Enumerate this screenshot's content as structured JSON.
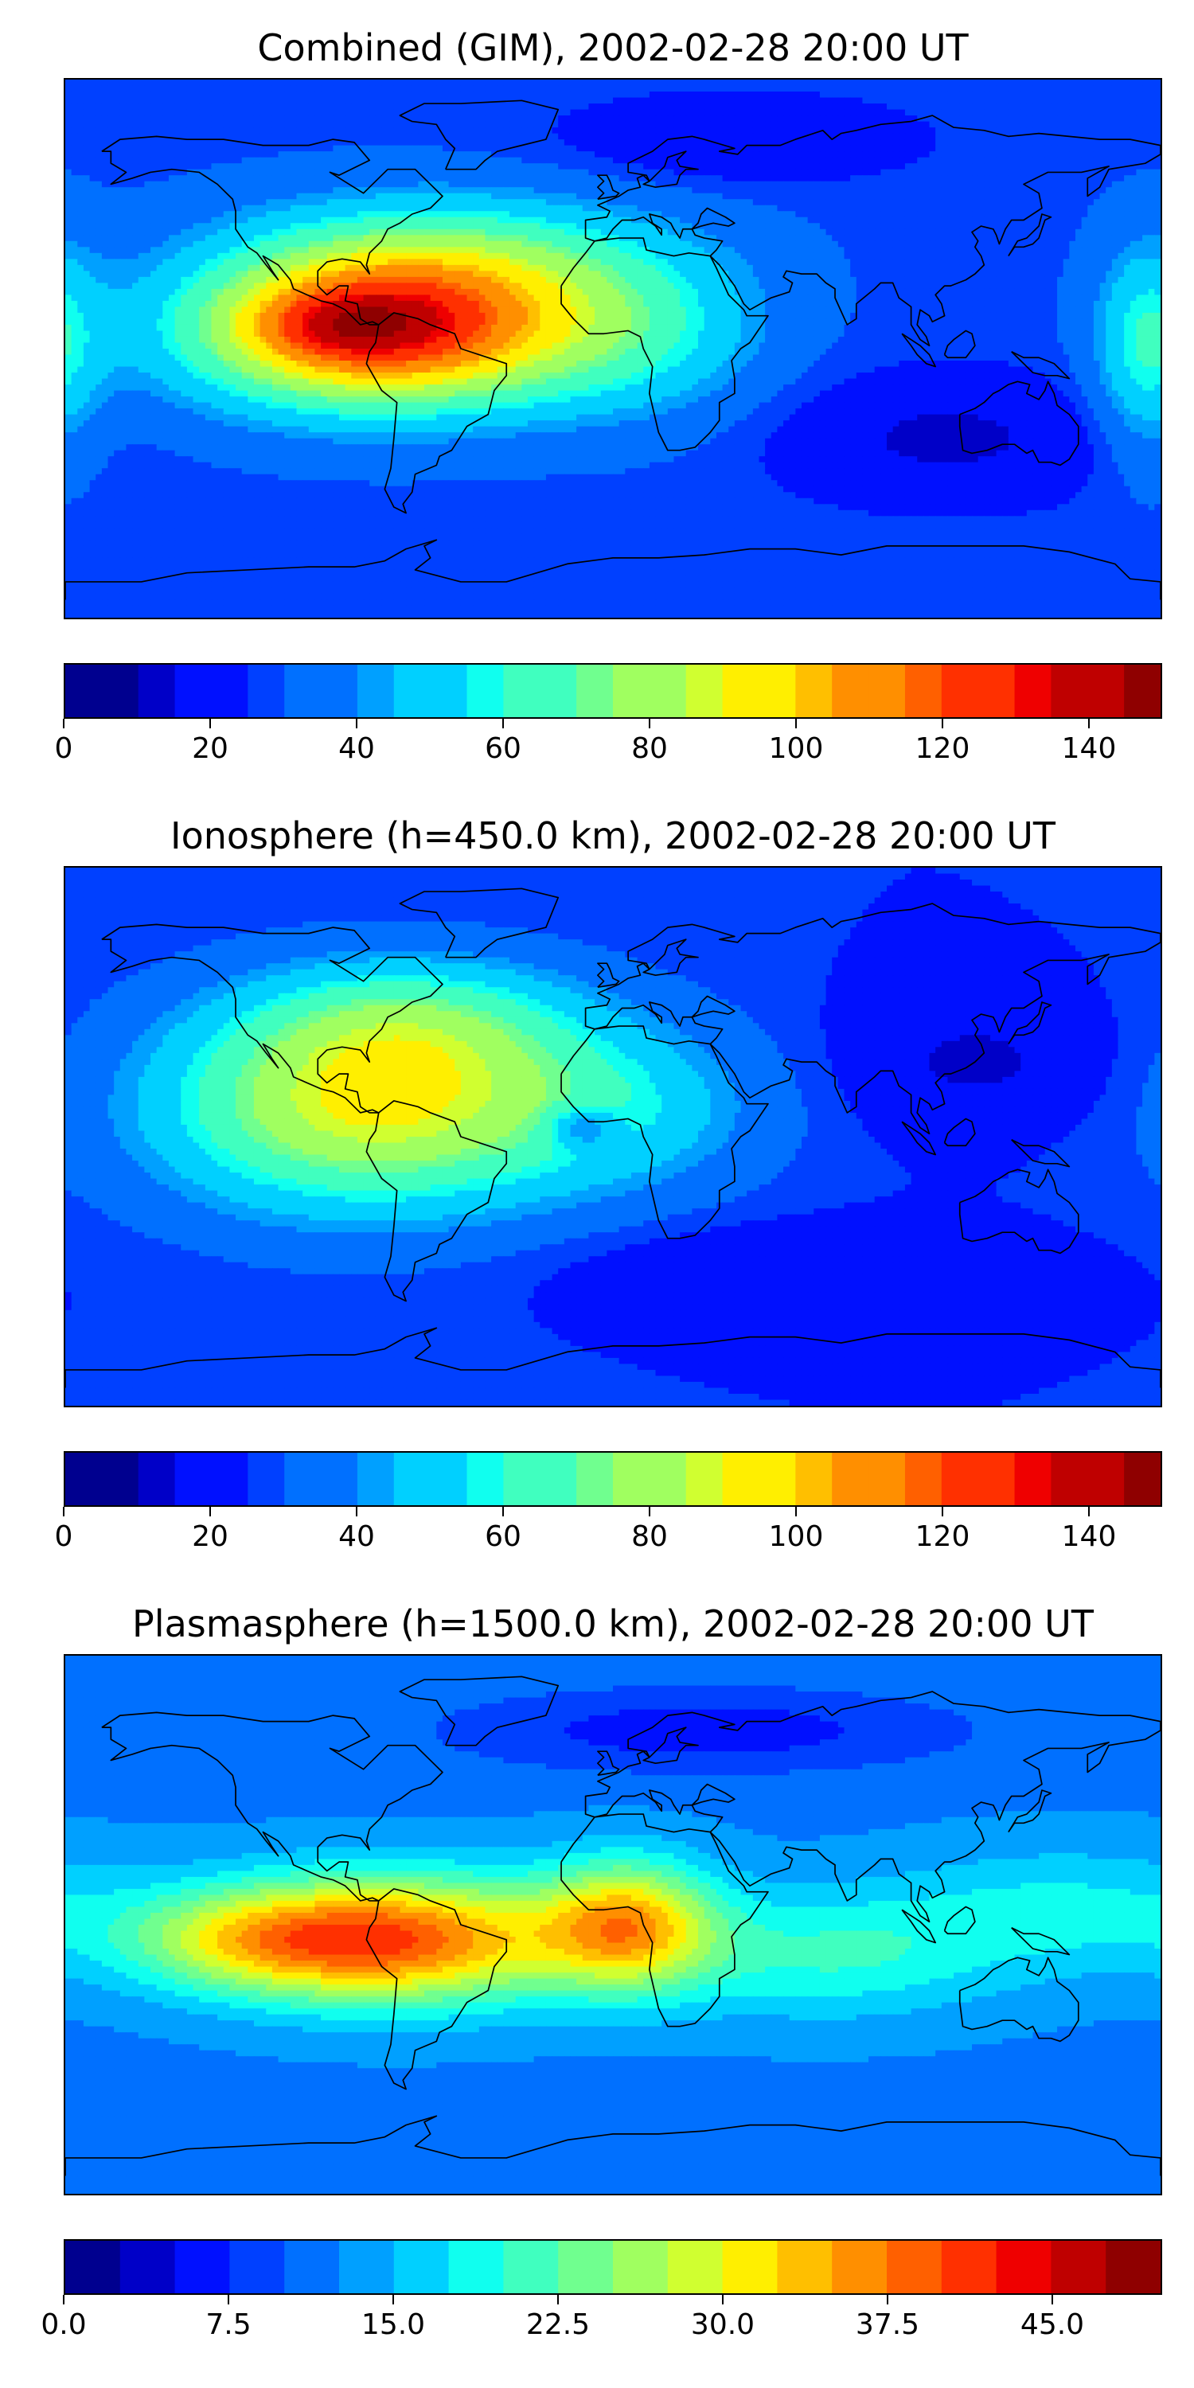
{
  "palette": [
    "#00008f",
    "#0000c8",
    "#0010ff",
    "#0040ff",
    "#0070ff",
    "#00a0ff",
    "#00d0ff",
    "#10ffef",
    "#40ffbf",
    "#70ff8f",
    "#a0ff60",
    "#d0ff30",
    "#ffef00",
    "#ffbf00",
    "#ff8f00",
    "#ff6000",
    "#ff3000",
    "#ef0000",
    "#bf0000",
    "#8f0000"
  ],
  "coastline_color": "#000000",
  "panels": [
    {
      "title": "Combined (GIM), 2002-02-28 20:00 UT",
      "colorbar": {
        "min": 0,
        "max": 150,
        "levels": 30,
        "ticks": [
          "0",
          "20",
          "40",
          "60",
          "80",
          "100",
          "120",
          "140"
        ],
        "tick_values": [
          0,
          20,
          40,
          60,
          80,
          100,
          120,
          140
        ]
      },
      "field": {
        "base": 28,
        "blobs": [
          {
            "lon": -75,
            "lat": 5,
            "amp": 95,
            "slon": 45,
            "slat": 18
          },
          {
            "lon": -90,
            "lat": 8,
            "amp": 20,
            "slon": 20,
            "slat": 8
          },
          {
            "lon": -55,
            "lat": 30,
            "amp": 35,
            "slon": 50,
            "slat": 16
          },
          {
            "lon": 10,
            "lat": 5,
            "amp": 22,
            "slon": 30,
            "slat": 20
          },
          {
            "lon": 175,
            "lat": 0,
            "amp": 30,
            "slon": 12,
            "slat": 25
          },
          {
            "lon": 110,
            "lat": -30,
            "amp": -15,
            "slon": 40,
            "slat": 15
          },
          {
            "lon": 40,
            "lat": 70,
            "amp": -12,
            "slon": 40,
            "slat": 10
          }
        ]
      }
    },
    {
      "title": "Ionosphere  (h=450.0 km), 2002-02-28 20:00 UT",
      "colorbar": {
        "min": 0,
        "max": 150,
        "levels": 30,
        "ticks": [
          "0",
          "20",
          "40",
          "60",
          "80",
          "100",
          "120",
          "140"
        ],
        "tick_values": [
          0,
          20,
          40,
          60,
          80,
          100,
          120,
          140
        ]
      },
      "field": {
        "base": 25,
        "blobs": [
          {
            "lon": -80,
            "lat": 10,
            "amp": 65,
            "slon": 50,
            "slat": 25
          },
          {
            "lon": -65,
            "lat": 40,
            "amp": 25,
            "slon": 40,
            "slat": 15
          },
          {
            "lon": 5,
            "lat": 10,
            "amp": 20,
            "slon": 35,
            "slat": 20
          },
          {
            "lon": -10,
            "lat": 3,
            "amp": -25,
            "slon": 8,
            "slat": 5
          },
          {
            "lon": 120,
            "lat": 25,
            "amp": -12,
            "slon": 30,
            "slat": 15
          },
          {
            "lon": 60,
            "lat": -45,
            "amp": -10,
            "slon": 50,
            "slat": 10
          }
        ]
      }
    },
    {
      "title": "Plasmasphere (h=1500.0 km), 2002-02-28 20:00 UT",
      "colorbar": {
        "min": 0,
        "max": 50,
        "levels": 20,
        "ticks": [
          "0.0",
          "7.5",
          "15.0",
          "22.5",
          "30.0",
          "37.5",
          "45.0"
        ],
        "tick_values": [
          0,
          7.5,
          15,
          22.5,
          30,
          37.5,
          45
        ]
      },
      "field": {
        "base": 12,
        "blobs": [
          {
            "lon": -70,
            "lat": -5,
            "amp": 26,
            "slon": 40,
            "slat": 15
          },
          {
            "lon": -120,
            "lat": -5,
            "amp": 12,
            "slon": 30,
            "slat": 12
          },
          {
            "lon": 5,
            "lat": 0,
            "amp": 20,
            "slon": 20,
            "slat": 15
          },
          {
            "lon": 70,
            "lat": -10,
            "amp": 8,
            "slon": 40,
            "slat": 15
          },
          {
            "lon": 150,
            "lat": 5,
            "amp": 6,
            "slon": 40,
            "slat": 15
          },
          {
            "lon": 30,
            "lat": 65,
            "amp": -6,
            "slon": 60,
            "slat": 10
          }
        ]
      }
    }
  ]
}
